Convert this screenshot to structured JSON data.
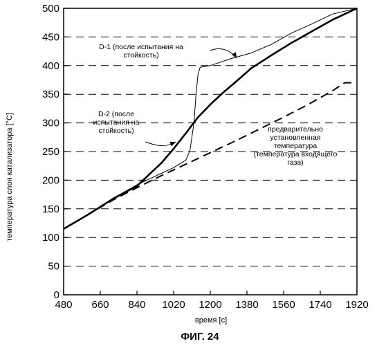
{
  "chart_data": {
    "type": "line",
    "title": "",
    "xlabel": "время [с]",
    "ylabel": "температура слоя катализатора [°C]",
    "xlim": [
      480,
      1920
    ],
    "ylim": [
      0,
      500
    ],
    "x_ticks": [
      "480",
      "660",
      "840",
      "1020",
      "1200",
      "1380",
      "1560",
      "1740",
      "1920"
    ],
    "y_ticks": [
      "0",
      "50",
      "100",
      "150",
      "200",
      "250",
      "300",
      "350",
      "400",
      "450",
      "500"
    ],
    "grid": "horizontal-dashed",
    "series": [
      {
        "name": "D-1 (после испытания на стойкость)",
        "style": "thin",
        "x": [
          480,
          600,
          720,
          840,
          960,
          1020,
          1080,
          1100,
          1120,
          1130,
          1140,
          1150,
          1200,
          1300,
          1400,
          1500,
          1600,
          1700,
          1800,
          1920
        ],
        "y": [
          115,
          140,
          168,
          192,
          212,
          222,
          235,
          252,
          300,
          350,
          385,
          397,
          400,
          412,
          422,
          437,
          457,
          473,
          490,
          500
        ]
      },
      {
        "name": "D-2 (после испытания на стойкость)",
        "style": "thick",
        "x": [
          480,
          600,
          720,
          840,
          960,
          1020,
          1080,
          1140,
          1200,
          1260,
          1320,
          1400,
          1500,
          1600,
          1700,
          1800,
          1920
        ],
        "y": [
          115,
          140,
          167,
          190,
          230,
          255,
          282,
          310,
          332,
          352,
          370,
          395,
          418,
          440,
          460,
          480,
          500
        ]
      },
      {
        "name": "предварительно установленная температура (температура входящего газа)",
        "style": "dashed",
        "x": [
          480,
          600,
          720,
          840,
          960,
          1080,
          1200,
          1320,
          1440,
          1560,
          1680,
          1800,
          1860,
          1900
        ],
        "y": [
          115,
          140,
          165,
          187,
          208,
          228,
          248,
          268,
          289,
          310,
          332,
          356,
          370,
          370
        ]
      }
    ],
    "annotations": [
      {
        "lines": [
          "D-1 (после испытания на",
          "стойкость)"
        ]
      },
      {
        "lines": [
          "D-2 (после",
          "испытания на",
          "стойкость)"
        ]
      },
      {
        "lines": [
          "предварительно",
          "установленная",
          "температура",
          "(температура входящего",
          "газа)"
        ]
      }
    ],
    "figure_label": "ФИГ. 24"
  }
}
